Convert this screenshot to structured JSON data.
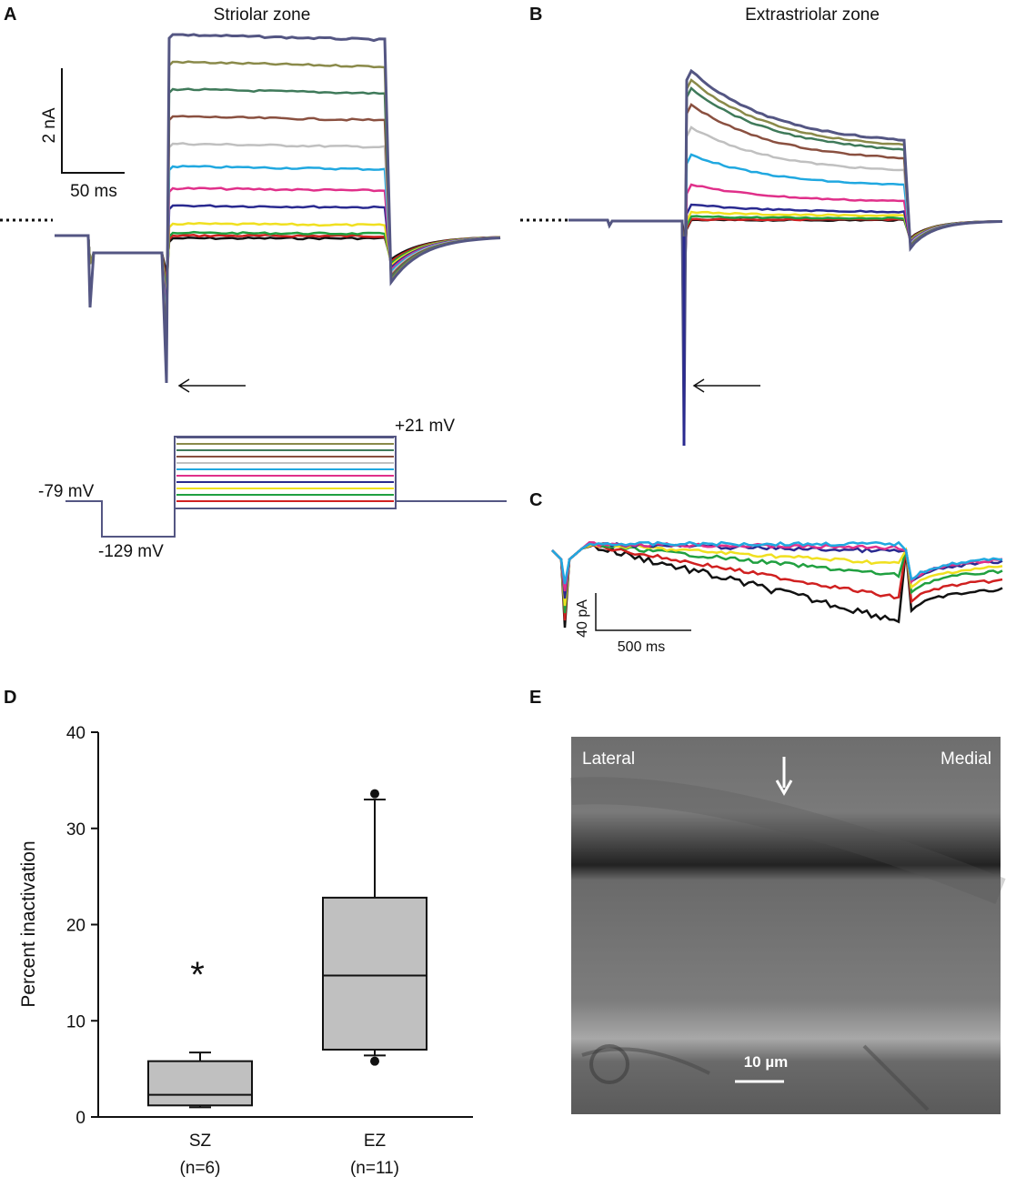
{
  "panel_a": {
    "label": "A",
    "title": "Striolar zone",
    "scale_current": "2 nA",
    "scale_time": "50 ms",
    "voltage_high": "+21 mV",
    "voltage_hold": "-79 mV",
    "voltage_low": "-129 mV"
  },
  "panel_b": {
    "label": "B",
    "title": "Extrastriolar zone"
  },
  "panel_c": {
    "label": "C",
    "scale_current": "40 pA",
    "scale_time": "500 ms"
  },
  "chart_data": {
    "label": "D",
    "type": "box",
    "ylabel": "Percent inactivation",
    "categories": [
      "SZ",
      "EZ"
    ],
    "category_notes": [
      "(n=6)",
      "(n=11)"
    ],
    "boxes": [
      {
        "low": 1,
        "q1": 1.2,
        "median": 2.3,
        "q3": 5.8,
        "high": 6.7,
        "outliers": []
      },
      {
        "low": 6.4,
        "q1": 7,
        "median": 14.7,
        "q3": 22.8,
        "high": 33,
        "outliers": [
          5.8,
          33.6
        ]
      }
    ],
    "annotation": "*",
    "color": "#c0c0c0",
    "ylim": [
      0,
      40
    ],
    "yticks": [
      0,
      10,
      20,
      30,
      40
    ]
  },
  "panel_e": {
    "label": "E",
    "left": "Lateral",
    "right": "Medial",
    "scale": "10 µm"
  }
}
